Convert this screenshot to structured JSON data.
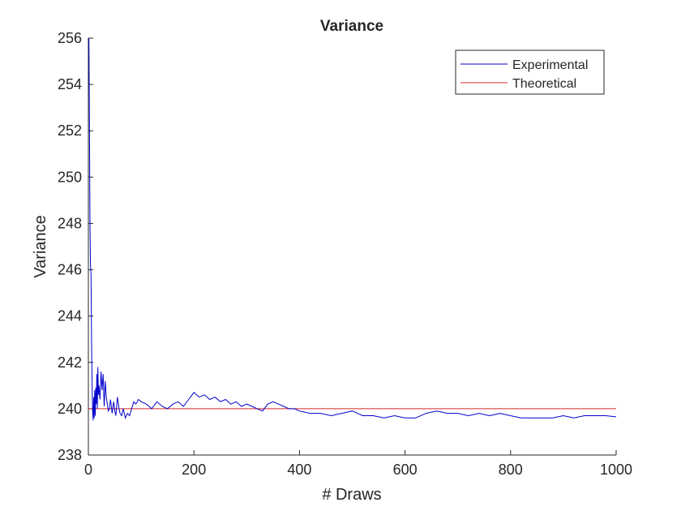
{
  "chart_data": {
    "type": "line",
    "title": "Variance",
    "xlabel": "# Draws",
    "ylabel": "Variance",
    "xlim": [
      0,
      1000
    ],
    "ylim": [
      238,
      256
    ],
    "xticks": [
      0,
      200,
      400,
      600,
      800,
      1000
    ],
    "yticks": [
      238,
      240,
      242,
      244,
      246,
      248,
      250,
      252,
      254,
      256
    ],
    "grid": false,
    "legend_position": "top-right",
    "series": [
      {
        "name": "Experimental",
        "color": "#0000cc",
        "x": [
          1,
          2,
          3,
          4,
          5,
          6,
          7,
          8,
          9,
          10,
          11,
          12,
          13,
          14,
          15,
          16,
          17,
          18,
          19,
          20,
          22,
          24,
          26,
          28,
          30,
          32,
          34,
          36,
          38,
          40,
          42,
          45,
          48,
          50,
          52,
          55,
          58,
          60,
          63,
          66,
          70,
          74,
          78,
          82,
          86,
          90,
          95,
          100,
          110,
          120,
          130,
          140,
          150,
          160,
          170,
          180,
          190,
          200,
          210,
          220,
          230,
          240,
          250,
          260,
          270,
          280,
          290,
          300,
          310,
          320,
          330,
          340,
          350,
          360,
          370,
          380,
          390,
          400,
          420,
          440,
          460,
          480,
          500,
          520,
          540,
          560,
          580,
          600,
          620,
          640,
          660,
          680,
          700,
          720,
          740,
          760,
          780,
          800,
          820,
          840,
          860,
          880,
          900,
          920,
          940,
          960,
          980,
          1000
        ],
        "values": [
          256.0,
          252.5,
          248.0,
          246.2,
          245.8,
          243.0,
          241.0,
          239.9,
          239.5,
          240.5,
          239.6,
          240.8,
          239.7,
          240.9,
          240.2,
          241.5,
          240.0,
          241.8,
          240.6,
          241.0,
          240.4,
          241.6,
          240.8,
          241.5,
          240.1,
          241.2,
          240.5,
          240.2,
          239.9,
          240.0,
          240.4,
          239.8,
          240.3,
          239.9,
          239.7,
          240.5,
          240.0,
          239.8,
          239.7,
          240.0,
          239.6,
          239.8,
          239.7,
          240.0,
          240.3,
          240.2,
          240.4,
          240.3,
          240.2,
          240.0,
          240.3,
          240.1,
          240.0,
          240.2,
          240.3,
          240.1,
          240.4,
          240.7,
          240.5,
          240.6,
          240.4,
          240.5,
          240.3,
          240.4,
          240.2,
          240.3,
          240.1,
          240.2,
          240.1,
          240.0,
          239.9,
          240.2,
          240.3,
          240.2,
          240.1,
          240.0,
          240.0,
          239.9,
          239.8,
          239.8,
          239.7,
          239.8,
          239.9,
          239.7,
          239.7,
          239.6,
          239.7,
          239.6,
          239.6,
          239.8,
          239.9,
          239.8,
          239.8,
          239.7,
          239.8,
          239.7,
          239.8,
          239.7,
          239.6,
          239.6,
          239.6,
          239.6,
          239.7,
          239.6,
          239.7,
          239.7,
          239.7,
          239.65
        ]
      },
      {
        "name": "Theoretical",
        "color": "#d62728",
        "x": [
          0,
          1000
        ],
        "values": [
          240,
          240
        ]
      }
    ]
  }
}
